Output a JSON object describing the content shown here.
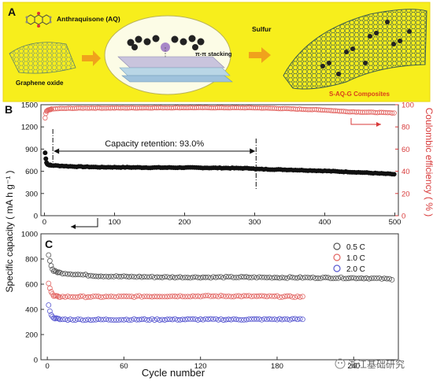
{
  "panel_a": {
    "letter": "A",
    "aq_label": "Anthraquisone (AQ)",
    "go_label": "Graphene oxide",
    "stacking_label": "π-π stacking",
    "sulfur_label": "Sulfur",
    "composite_label": "S-AQ-G Composites",
    "colors": {
      "background": "#f7ee1c",
      "arrow": "#f0a21c",
      "composite_text": "#d9401a"
    }
  },
  "shared": {
    "ylabel": "Specific capacity ( mA h g⁻¹ )",
    "xlabel": "Cycle number"
  },
  "watermark": "浙江基础研究",
  "chart_data": [
    {
      "id": "B",
      "type": "scatter",
      "letter": "B",
      "xlim": [
        -5,
        505
      ],
      "xticks": [
        0,
        100,
        200,
        300,
        400,
        500
      ],
      "ylim": [
        0,
        1500
      ],
      "yticks": [
        0,
        300,
        600,
        900,
        1200,
        1500
      ],
      "y2lim": [
        0,
        100
      ],
      "y2ticks": [
        0,
        20,
        40,
        60,
        80,
        100
      ],
      "y2label": "Coulombic efficiency ( % )",
      "annotation": "Capacity retention: 93.0%",
      "annotation_range": [
        12,
        302
      ],
      "series": [
        {
          "axis": "left",
          "color": "#111111",
          "filled": true,
          "points": [
            [
              1,
              850
            ],
            [
              2,
              770
            ],
            [
              3,
              720
            ],
            [
              4,
              700
            ],
            [
              5,
              690
            ],
            [
              10,
              680
            ],
            [
              20,
              675
            ],
            [
              40,
              665
            ],
            [
              60,
              660
            ],
            [
              80,
              655
            ],
            [
              100,
              655
            ],
            [
              150,
              650
            ],
            [
              200,
              650
            ],
            [
              250,
              645
            ],
            [
              298,
              640
            ],
            [
              300,
              625
            ],
            [
              302,
              630
            ],
            [
              350,
              620
            ],
            [
              400,
              605
            ],
            [
              450,
              585
            ],
            [
              500,
              560
            ]
          ]
        },
        {
          "axis": "right",
          "color": "#e26461",
          "filled": false,
          "points": [
            [
              1,
              88
            ],
            [
              2,
              92
            ],
            [
              3,
              94
            ],
            [
              5,
              95
            ],
            [
              10,
              96
            ],
            [
              20,
              96.5
            ],
            [
              60,
              97
            ],
            [
              100,
              97
            ],
            [
              200,
              97.3
            ],
            [
              300,
              97.2
            ],
            [
              340,
              96.5
            ],
            [
              400,
              95.2
            ],
            [
              430,
              93.8
            ],
            [
              450,
              93.4
            ],
            [
              500,
              92.6
            ]
          ]
        }
      ]
    },
    {
      "id": "C",
      "type": "scatter",
      "letter": "C",
      "xlim": [
        -5,
        275
      ],
      "xticks": [
        0,
        60,
        120,
        180,
        240
      ],
      "ylim": [
        0,
        1000
      ],
      "yticks": [
        0,
        200,
        400,
        600,
        800,
        1000
      ],
      "legend_position": "top-right",
      "series": [
        {
          "name": "0.5 C",
          "color": "#555555",
          "points": [
            [
              1,
              830
            ],
            [
              2,
              790
            ],
            [
              3,
              745
            ],
            [
              4,
              720
            ],
            [
              5,
              705
            ],
            [
              10,
              690
            ],
            [
              20,
              680
            ],
            [
              40,
              665
            ],
            [
              60,
              660
            ],
            [
              100,
              655
            ],
            [
              150,
              655
            ],
            [
              200,
              652
            ],
            [
              250,
              648
            ],
            [
              270,
              640
            ]
          ]
        },
        {
          "name": "1.0 C",
          "color": "#e26461",
          "points": [
            [
              1,
              610
            ],
            [
              2,
              570
            ],
            [
              3,
              540
            ],
            [
              4,
              520
            ],
            [
              5,
              505
            ],
            [
              10,
              500
            ],
            [
              20,
              500
            ],
            [
              50,
              500
            ],
            [
              100,
              505
            ],
            [
              150,
              505
            ],
            [
              200,
              500
            ]
          ]
        },
        {
          "name": "2.0 C",
          "color": "#5858d0",
          "points": [
            [
              1,
              430
            ],
            [
              2,
              390
            ],
            [
              3,
              360
            ],
            [
              4,
              340
            ],
            [
              6,
              330
            ],
            [
              10,
              320
            ],
            [
              30,
              318
            ],
            [
              100,
              320
            ],
            [
              150,
              320
            ],
            [
              200,
              322
            ]
          ]
        }
      ]
    }
  ]
}
